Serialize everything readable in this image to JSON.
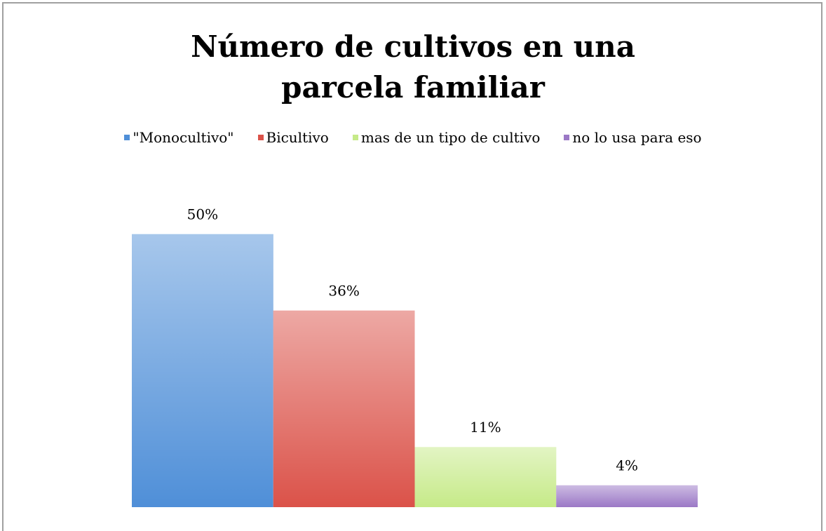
{
  "chart_data": {
    "type": "bar",
    "title": "Número de cultivos en una parcela familiar",
    "categories": [
      null
    ],
    "series": [
      {
        "name": "\"Monocultivo\"",
        "color": "#4f8fd8",
        "values": [
          50
        ],
        "value_labels": [
          "50%"
        ]
      },
      {
        "name": "Bicultivo",
        "color": "#db5249",
        "values": [
          36
        ],
        "value_labels": [
          "36%"
        ]
      },
      {
        "name": "mas de un tipo de cultivo",
        "color": "#c6ea88",
        "values": [
          11
        ],
        "value_labels": [
          "11%"
        ]
      },
      {
        "name": "no lo usa para eso",
        "color": "#9b78c6",
        "values": [
          4
        ],
        "value_labels": [
          "4%"
        ]
      }
    ],
    "ylim": [
      0,
      60
    ],
    "legend": "top"
  }
}
